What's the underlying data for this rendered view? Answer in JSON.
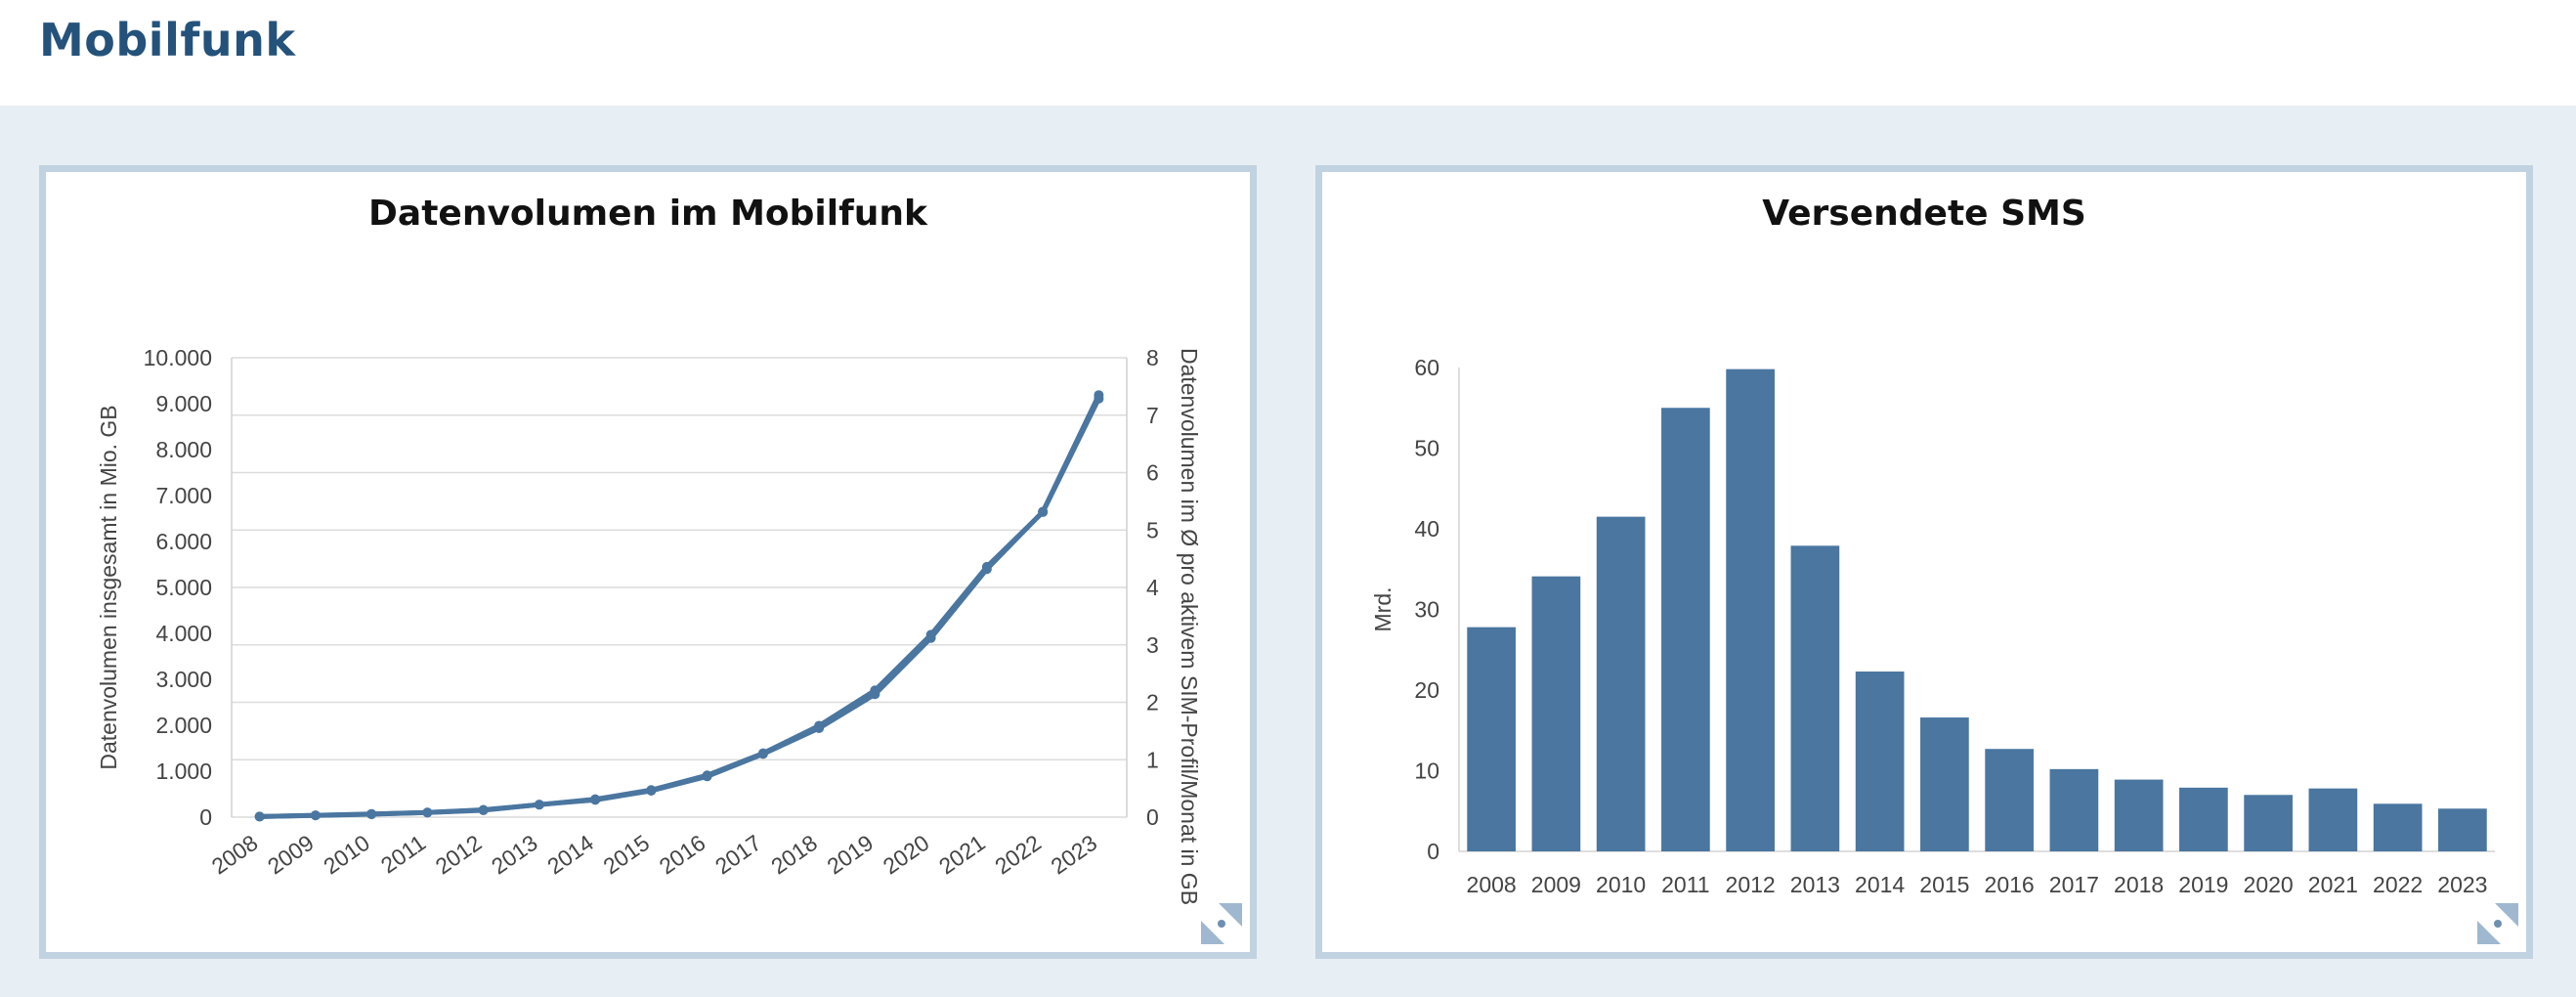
{
  "page": {
    "title": "Mobilfunk"
  },
  "colors": {
    "title": "#24527a",
    "series": "#4a76a0",
    "panel_border": "#c1d2e0",
    "background": "#e8eff4"
  },
  "icons": {
    "expand": "expand-icon"
  },
  "chart_data": [
    {
      "type": "line",
      "title": "Datenvolumen im Mobilfunk",
      "x": [
        "2008",
        "2009",
        "2010",
        "2011",
        "2012",
        "2013",
        "2014",
        "2015",
        "2016",
        "2017",
        "2018",
        "2019",
        "2020",
        "2021",
        "2022",
        "2023"
      ],
      "ylabel": "Datenvolumen insgesamt in Mio. GB",
      "y2label": "Datenvolumen im Ø pro aktivem SIM-Profil/Monat in GB",
      "ylim": [
        0,
        10000
      ],
      "y2lim": [
        0,
        8
      ],
      "yticks": [
        "0",
        "1.000",
        "2.000",
        "3.000",
        "4.000",
        "5.000",
        "6.000",
        "7.000",
        "8.000",
        "9.000",
        "10.000"
      ],
      "y2ticks": [
        "0",
        "1",
        "2",
        "3",
        "4",
        "5",
        "6",
        "7",
        "8"
      ],
      "grid": true,
      "series": [
        {
          "axis": "left",
          "values": [
            12,
            40,
            70,
            100,
            160,
            270,
            390,
            590,
            910,
            1390,
            1990,
            2760,
            3970,
            5450,
            6640,
            9110
          ]
        },
        {
          "axis": "right",
          "values": [
            0.01,
            0.03,
            0.05,
            0.08,
            0.12,
            0.22,
            0.3,
            0.46,
            0.71,
            1.1,
            1.55,
            2.14,
            3.12,
            4.32,
            5.32,
            7.35
          ]
        }
      ]
    },
    {
      "type": "bar",
      "title": "Versendete SMS",
      "categories": [
        "2008",
        "2009",
        "2010",
        "2011",
        "2012",
        "2013",
        "2014",
        "2015",
        "2016",
        "2017",
        "2018",
        "2019",
        "2020",
        "2021",
        "2022",
        "2023"
      ],
      "values": [
        27.8,
        34.1,
        41.5,
        55.0,
        59.8,
        37.9,
        22.3,
        16.6,
        12.7,
        10.2,
        8.9,
        7.9,
        7.0,
        7.8,
        5.9,
        5.3
      ],
      "ylabel": "Mrd.",
      "ylim": [
        0,
        60
      ],
      "yticks": [
        "0",
        "10",
        "20",
        "30",
        "40",
        "50",
        "60"
      ],
      "grid": false
    }
  ]
}
